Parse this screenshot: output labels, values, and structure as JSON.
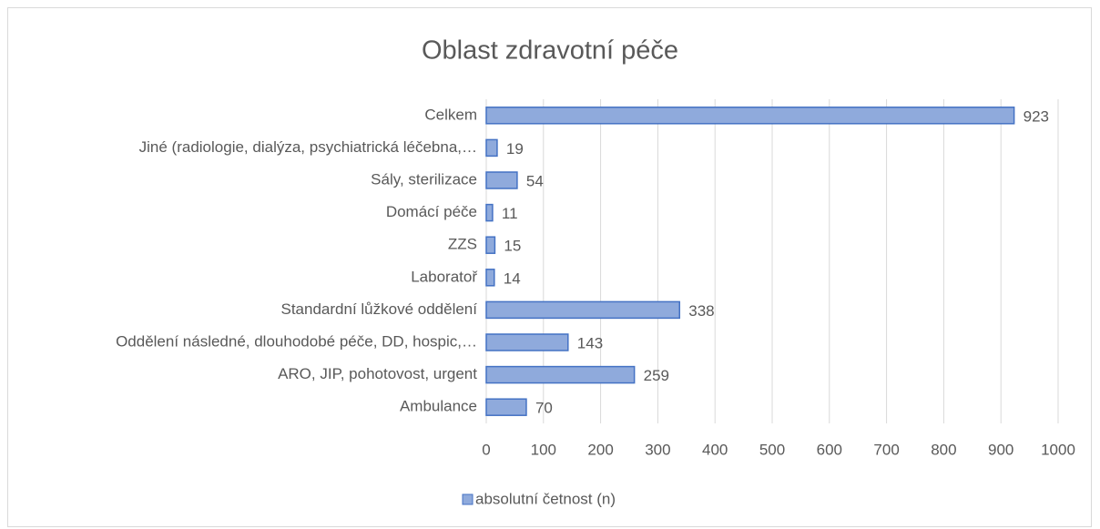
{
  "chart_data": {
    "type": "bar",
    "orientation": "horizontal",
    "title": "Oblast zdravotní péče",
    "categories": [
      "Celkem",
      "Jiné (radiologie, dialýza, psychiatrická léčebna,…",
      "Sály, sterilizace",
      "Domácí péče",
      "ZZS",
      "Laboratoř",
      "Standardní lůžkové oddělení",
      "Oddělení následné, dlouhodobé péče, DD, hospic,…",
      "ARO, JIP, pohotovost, urgent",
      "Ambulance"
    ],
    "series": [
      {
        "name": "absolutní četnost (n)",
        "color": "#8faadc",
        "values": [
          923,
          19,
          54,
          11,
          15,
          14,
          338,
          143,
          259,
          70
        ]
      }
    ],
    "xlim": [
      0,
      1000
    ],
    "xticks": [
      0,
      100,
      200,
      300,
      400,
      500,
      600,
      700,
      800,
      900,
      1000
    ],
    "grid": true,
    "legend": "bottom"
  }
}
